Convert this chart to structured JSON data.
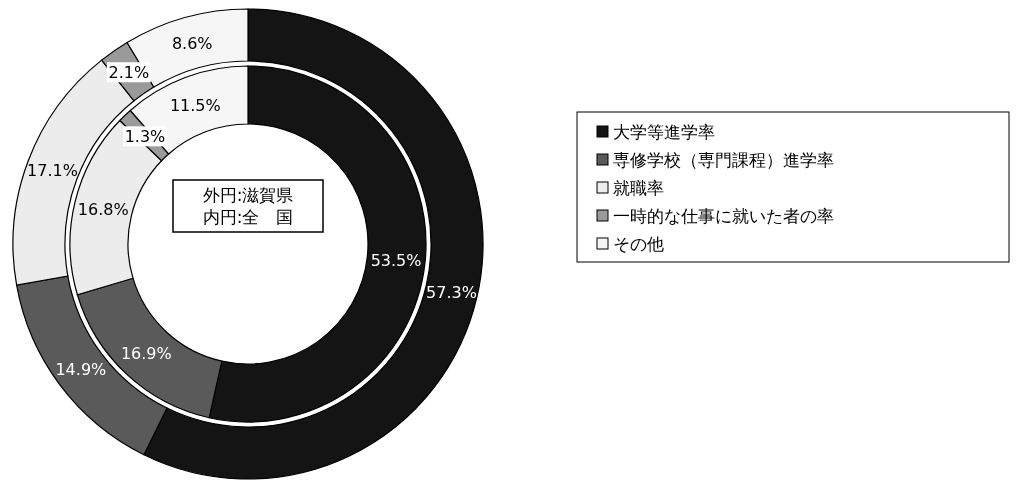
{
  "chart_data": {
    "type": "donut",
    "categories": [
      "大学等進学率",
      "専修学校（専門課程）進学率",
      "就職率",
      "一時的な仕事に就いた者の率",
      "その他"
    ],
    "colors": [
      "#141414",
      "#5a5a5a",
      "#ececec",
      "#9a9a9a",
      "#f6f6f6"
    ],
    "series": [
      {
        "values": [
          57.3,
          14.9,
          17.1,
          2.1,
          8.6
        ],
        "value_labels": [
          "57.3%",
          "14.9%",
          "17.1%",
          "2.1%",
          "8.6%"
        ]
      },
      {
        "values": [
          53.5,
          16.9,
          16.8,
          1.3,
          11.5
        ],
        "value_labels": [
          "53.5%",
          "16.9%",
          "16.8%",
          "1.3%",
          "11.5%"
        ]
      }
    ],
    "annotations": [
      "外円:滋賀県",
      "内円:全　国"
    ],
    "legend": "right"
  }
}
